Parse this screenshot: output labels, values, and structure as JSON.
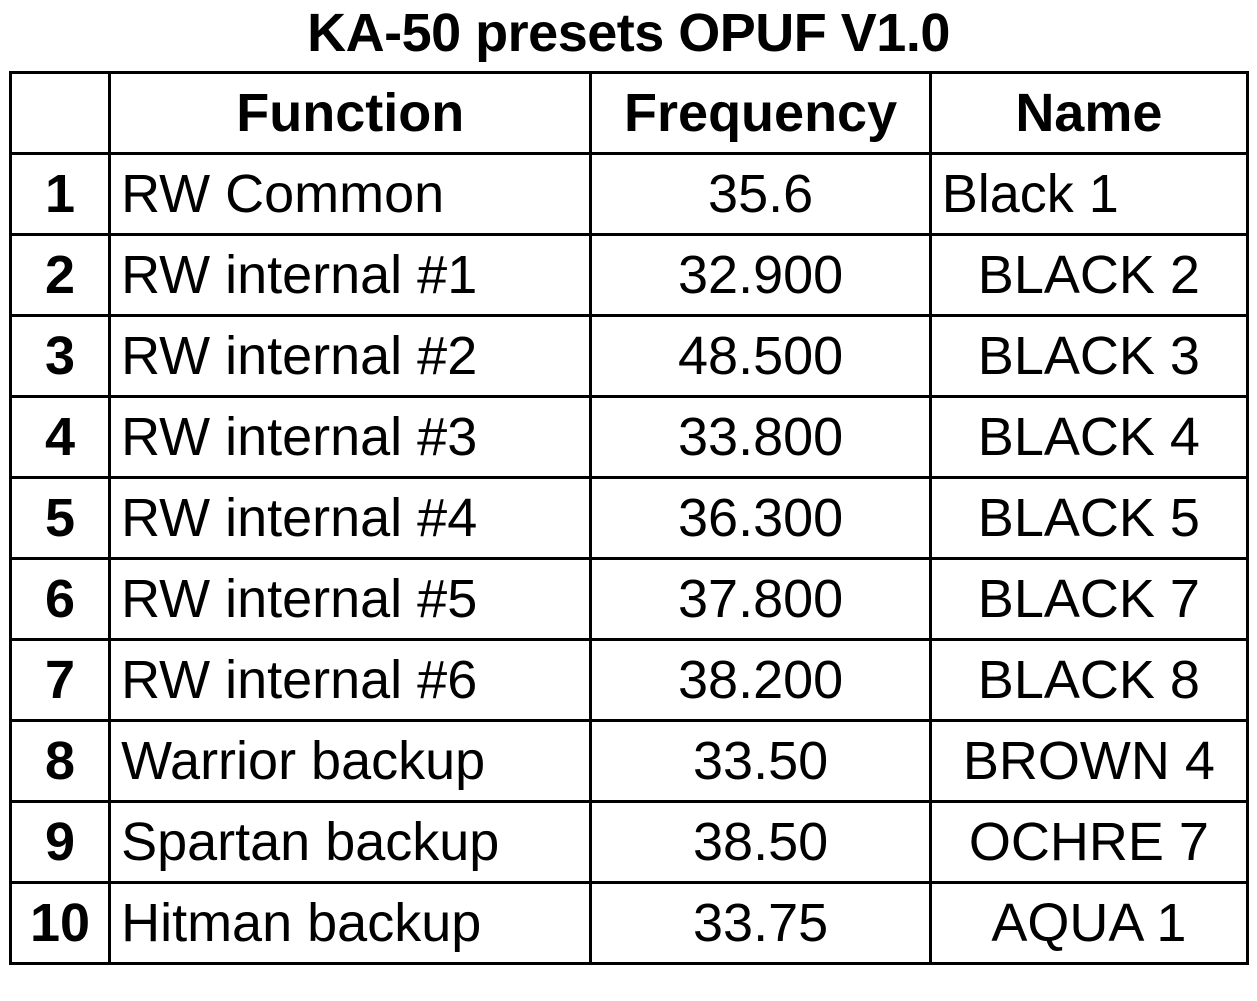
{
  "title": "KA-50 presets OPUF V1.0",
  "table": {
    "headers": {
      "number": "",
      "function": "Function",
      "frequency": "Frequency",
      "name": "Name"
    },
    "rows": [
      {
        "number": "1",
        "function": "RW Common",
        "frequency": "35.6",
        "name": "Black 1"
      },
      {
        "number": "2",
        "function": "RW internal #1",
        "frequency": "32.900",
        "name": "BLACK 2"
      },
      {
        "number": "3",
        "function": "RW internal #2",
        "frequency": "48.500",
        "name": "BLACK 3"
      },
      {
        "number": "4",
        "function": "RW internal #3",
        "frequency": "33.800",
        "name": "BLACK 4"
      },
      {
        "number": "5",
        "function": "RW internal #4",
        "frequency": "36.300",
        "name": "BLACK 5"
      },
      {
        "number": "6",
        "function": "RW internal #5",
        "frequency": "37.800",
        "name": "BLACK 7"
      },
      {
        "number": "7",
        "function": "RW internal #6",
        "frequency": "38.200",
        "name": "BLACK 8"
      },
      {
        "number": "8",
        "function": "Warrior backup",
        "frequency": "33.50",
        "name": "BROWN 4"
      },
      {
        "number": "9",
        "function": "Spartan backup",
        "frequency": "38.50",
        "name": "OCHRE 7"
      },
      {
        "number": "10",
        "function": "Hitman backup",
        "frequency": "33.75",
        "name": "AQUA 1"
      }
    ]
  }
}
